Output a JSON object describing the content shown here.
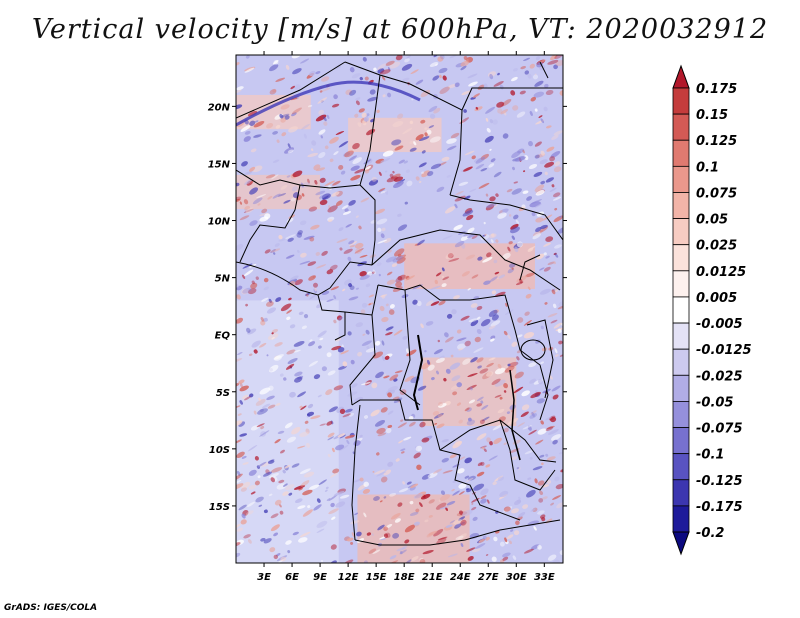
{
  "title": "Vertical velocity [m/s] at 600hPa, VT: 2020032912",
  "credit": "GrADS: IGES/COLA",
  "map": {
    "lon_range": [
      0,
      35
    ],
    "lat_range": [
      -20,
      24.5
    ],
    "lat_ticks": [
      {
        "value": 20,
        "label": "20N"
      },
      {
        "value": 15,
        "label": "15N"
      },
      {
        "value": 10,
        "label": "10N"
      },
      {
        "value": 5,
        "label": "5N"
      },
      {
        "value": 0,
        "label": "EQ"
      },
      {
        "value": -5,
        "label": "5S"
      },
      {
        "value": -10,
        "label": "10S"
      },
      {
        "value": -15,
        "label": "15S"
      }
    ],
    "lon_ticks": [
      {
        "value": 3,
        "label": "3E"
      },
      {
        "value": 6,
        "label": "6E"
      },
      {
        "value": 9,
        "label": "9E"
      },
      {
        "value": 12,
        "label": "12E"
      },
      {
        "value": 15,
        "label": "15E"
      },
      {
        "value": 18,
        "label": "18E"
      },
      {
        "value": 21,
        "label": "21E"
      },
      {
        "value": 24,
        "label": "24E"
      },
      {
        "value": 27,
        "label": "27E"
      },
      {
        "value": 30,
        "label": "30E"
      },
      {
        "value": 33,
        "label": "33E"
      }
    ]
  },
  "colorbar": {
    "labels": [
      "0.175",
      "0.15",
      "0.125",
      "0.1",
      "0.075",
      "0.05",
      "0.025",
      "0.0125",
      "0.005",
      "-0.005",
      "-0.0125",
      "-0.025",
      "-0.05",
      "-0.075",
      "-0.1",
      "-0.125",
      "-0.175",
      "-0.2"
    ],
    "colors": [
      "#b2182b",
      "#c43c3c",
      "#d35a55",
      "#e07a70",
      "#ea988c",
      "#f2b4a8",
      "#f7ccc2",
      "#fbe2db",
      "#fdf1ee",
      "#ffffff",
      "#e4e2f6",
      "#cdcaef",
      "#b1ade6",
      "#9590dc",
      "#7771cf",
      "#5953c1",
      "#3c36b0",
      "#1e1a9a",
      "#0c0a80"
    ]
  },
  "colors": {
    "land_blue": "#c7c8f2",
    "ocean_blue": "#d6d8f6",
    "pale_red": "#f4c9c1",
    "strong_red": "#c9302c",
    "strong_blue": "#3f3ab8",
    "border": "#000000"
  }
}
